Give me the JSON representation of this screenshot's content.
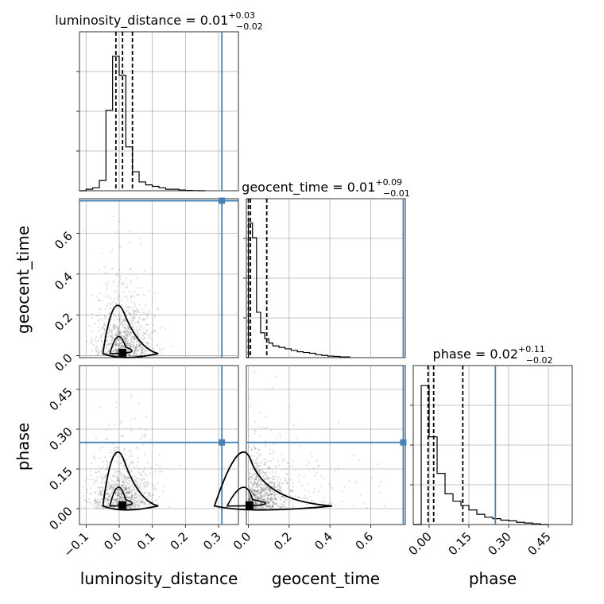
{
  "chart_data": {
    "type": "corner",
    "parameters": [
      "luminosity_distance",
      "geocent_time",
      "phase"
    ],
    "grid": true,
    "truth_color": "#4682b4",
    "truths": {
      "luminosity_distance": 0.31,
      "geocent_time": 0.76,
      "phase": 0.25
    },
    "ranges": {
      "luminosity_distance": [
        -0.12,
        0.36
      ],
      "geocent_time": [
        -0.01,
        0.77
      ],
      "phase": [
        -0.06,
        0.54
      ]
    },
    "titles": {
      "luminosity_distance": {
        "name": "luminosity_distance",
        "median": "0.01",
        "plus": "+0.03",
        "minus": "−0.02"
      },
      "geocent_time": {
        "name": "geocent_time",
        "median": "0.01",
        "plus": "+0.09",
        "minus": "−0.01"
      },
      "phase": {
        "name": "phase",
        "median": "0.02",
        "plus": "+0.11",
        "minus": "−0.02"
      }
    },
    "quantiles": {
      "luminosity_distance": [
        -0.01,
        0.01,
        0.04
      ],
      "geocent_time": [
        0.0,
        0.01,
        0.09
      ],
      "phase": [
        -0.004,
        0.017,
        0.127
      ]
    },
    "xlabels": [
      "luminosity_distance",
      "geocent_time",
      "phase"
    ],
    "ylabels": [
      "geocent_time",
      "phase"
    ],
    "ticks": {
      "luminosity_distance": [
        "−0.1",
        "0.0",
        "0.1",
        "0.2",
        "0.3"
      ],
      "geocent_time": [
        "0.0",
        "0.2",
        "0.4",
        "0.6"
      ],
      "phase": [
        "0.00",
        "0.15",
        "0.30",
        "0.45"
      ]
    },
    "histograms": {
      "luminosity_distance": {
        "bins": [
          -0.12,
          -0.1,
          -0.08,
          -0.06,
          -0.04,
          -0.02,
          0.0,
          0.02,
          0.04,
          0.06,
          0.08,
          0.1,
          0.12,
          0.14,
          0.16,
          0.18,
          0.2,
          0.22,
          0.24,
          0.26
        ],
        "counts": [
          0,
          0.01,
          0.02,
          0.07,
          0.55,
          0.92,
          0.79,
          0.3,
          0.13,
          0.06,
          0.04,
          0.03,
          0.02,
          0.01,
          0.01,
          0.005,
          0.002,
          0.001,
          0
        ]
      },
      "geocent_time": {
        "bins": [
          -0.01,
          0.0,
          0.02,
          0.04,
          0.06,
          0.08,
          0.1,
          0.12,
          0.15,
          0.18,
          0.21,
          0.24,
          0.27,
          0.3,
          0.33,
          0.36,
          0.39,
          0.42,
          0.45,
          0.5
        ],
        "counts": [
          0,
          0.92,
          0.82,
          0.31,
          0.17,
          0.13,
          0.1,
          0.08,
          0.07,
          0.06,
          0.05,
          0.04,
          0.035,
          0.03,
          0.02,
          0.015,
          0.01,
          0.008,
          0.005
        ]
      },
      "phase": {
        "bins": [
          -0.06,
          -0.03,
          0.0,
          0.03,
          0.06,
          0.09,
          0.12,
          0.15,
          0.18,
          0.21,
          0.24,
          0.27,
          0.3,
          0.33,
          0.36,
          0.39,
          0.42,
          0.45
        ],
        "counts": [
          0,
          0.95,
          0.6,
          0.35,
          0.21,
          0.16,
          0.13,
          0.1,
          0.07,
          0.05,
          0.04,
          0.03,
          0.025,
          0.015,
          0.01,
          0.005,
          0
        ]
      }
    }
  }
}
